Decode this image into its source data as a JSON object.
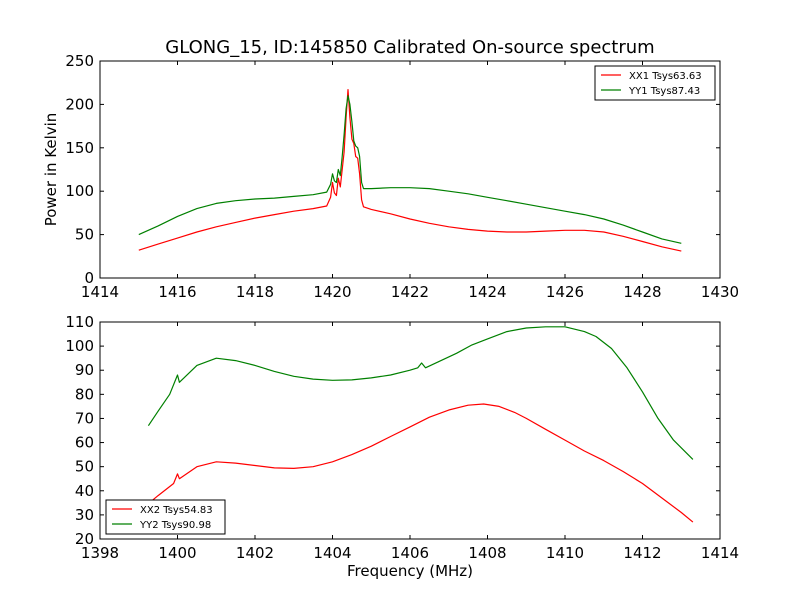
{
  "figure_title": "GLONG_15, ID:145850 Calibrated On-source spectrum",
  "chart_data": [
    {
      "type": "line",
      "id": "top",
      "title": "GLONG_15, ID:145850 Calibrated On-source spectrum",
      "xlabel": "",
      "ylabel": "Power in Kelvin",
      "xlim": [
        1414,
        1430
      ],
      "ylim": [
        0,
        250
      ],
      "xticks": [
        1414,
        1416,
        1418,
        1420,
        1422,
        1424,
        1426,
        1428,
        1430
      ],
      "yticks": [
        0,
        50,
        100,
        150,
        200,
        250
      ],
      "grid": false,
      "legend_position": "top-right",
      "series": [
        {
          "name": "XX1 Tsys63.63",
          "color": "#ff0000",
          "x": [
            1415.0,
            1415.5,
            1416.0,
            1416.5,
            1417.0,
            1417.5,
            1418.0,
            1418.5,
            1419.0,
            1419.5,
            1419.85,
            1419.95,
            1420.0,
            1420.05,
            1420.1,
            1420.15,
            1420.2,
            1420.25,
            1420.3,
            1420.35,
            1420.4,
            1420.45,
            1420.5,
            1420.55,
            1420.6,
            1420.65,
            1420.7,
            1420.75,
            1420.8,
            1421.0,
            1421.5,
            1422.0,
            1422.5,
            1423.0,
            1423.5,
            1424.0,
            1424.5,
            1425.0,
            1425.5,
            1426.0,
            1426.5,
            1427.0,
            1427.5,
            1428.0,
            1428.5,
            1429.0
          ],
          "values": [
            32,
            39,
            46,
            53,
            59,
            64,
            69,
            73,
            77,
            80,
            83,
            93,
            110,
            98,
            95,
            115,
            105,
            125,
            145,
            185,
            217,
            185,
            160,
            155,
            140,
            138,
            120,
            90,
            82,
            79,
            74,
            68,
            63,
            59,
            56,
            54,
            53,
            53,
            54,
            55,
            55,
            53,
            48,
            42,
            36,
            31
          ]
        },
        {
          "name": "YY1 Tsys87.43",
          "color": "#008000",
          "x": [
            1415.0,
            1415.5,
            1416.0,
            1416.5,
            1417.0,
            1417.5,
            1418.0,
            1418.5,
            1419.0,
            1419.5,
            1419.85,
            1419.95,
            1420.0,
            1420.05,
            1420.1,
            1420.15,
            1420.2,
            1420.25,
            1420.3,
            1420.35,
            1420.4,
            1420.45,
            1420.5,
            1420.55,
            1420.6,
            1420.65,
            1420.7,
            1420.75,
            1420.8,
            1421.0,
            1421.5,
            1422.0,
            1422.5,
            1423.0,
            1423.5,
            1424.0,
            1424.5,
            1425.0,
            1425.5,
            1426.0,
            1426.5,
            1427.0,
            1427.5,
            1428.0,
            1428.5,
            1429.0
          ],
          "values": [
            50,
            60,
            71,
            80,
            86,
            89,
            91,
            92,
            94,
            96,
            99,
            108,
            120,
            112,
            110,
            125,
            118,
            140,
            165,
            195,
            210,
            200,
            180,
            158,
            152,
            150,
            140,
            110,
            103,
            103,
            104,
            104,
            103,
            100,
            97,
            93,
            89,
            85,
            81,
            77,
            73,
            68,
            61,
            53,
            45,
            40
          ]
        }
      ]
    },
    {
      "type": "line",
      "id": "bottom",
      "title": "",
      "xlabel": "Frequency (MHz)",
      "ylabel": "",
      "xlim": [
        1398,
        1414
      ],
      "ylim": [
        20,
        110
      ],
      "xticks": [
        1398,
        1400,
        1402,
        1404,
        1406,
        1408,
        1410,
        1412,
        1414
      ],
      "yticks": [
        20,
        30,
        40,
        50,
        60,
        70,
        80,
        90,
        100,
        110
      ],
      "grid": false,
      "legend_position": "bottom-left",
      "series": [
        {
          "name": "XX2 Tsys54.83",
          "color": "#ff0000",
          "x": [
            1399.2,
            1399.5,
            1399.9,
            1400.0,
            1400.05,
            1400.5,
            1401.0,
            1401.5,
            1402.0,
            1402.5,
            1403.0,
            1403.5,
            1404.0,
            1404.5,
            1405.0,
            1405.5,
            1406.0,
            1406.5,
            1407.0,
            1407.5,
            1407.9,
            1408.3,
            1408.7,
            1409.0,
            1409.5,
            1410.0,
            1410.5,
            1411.0,
            1411.5,
            1412.0,
            1412.5,
            1413.0,
            1413.3
          ],
          "values": [
            34,
            38,
            43,
            47,
            45,
            50,
            52,
            51.5,
            50.5,
            49.5,
            49.3,
            50,
            52,
            55,
            58.5,
            62.5,
            66.5,
            70.5,
            73.5,
            75.5,
            76,
            75,
            72.5,
            70,
            65.5,
            61,
            56.5,
            52.5,
            48,
            43,
            37,
            31,
            27
          ]
        },
        {
          "name": "YY2 Tsys90.98",
          "color": "#008000",
          "x": [
            1399.25,
            1399.5,
            1399.8,
            1400.0,
            1400.05,
            1400.5,
            1401.0,
            1401.5,
            1402.0,
            1402.5,
            1403.0,
            1403.5,
            1404.0,
            1404.5,
            1405.0,
            1405.5,
            1406.0,
            1406.2,
            1406.3,
            1406.4,
            1406.8,
            1407.2,
            1407.6,
            1408.0,
            1408.5,
            1409.0,
            1409.5,
            1410.0,
            1410.5,
            1410.8,
            1411.2,
            1411.6,
            1412.0,
            1412.4,
            1412.8,
            1413.3
          ],
          "values": [
            67,
            73,
            80,
            88,
            85,
            92,
            95,
            94,
            92,
            89.5,
            87.5,
            86.3,
            85.8,
            86,
            86.8,
            88,
            90,
            91,
            93,
            91,
            94,
            97,
            100.5,
            103,
            106,
            107.5,
            108,
            108,
            106,
            104,
            99,
            91,
            81,
            70,
            61,
            53
          ]
        }
      ]
    }
  ]
}
